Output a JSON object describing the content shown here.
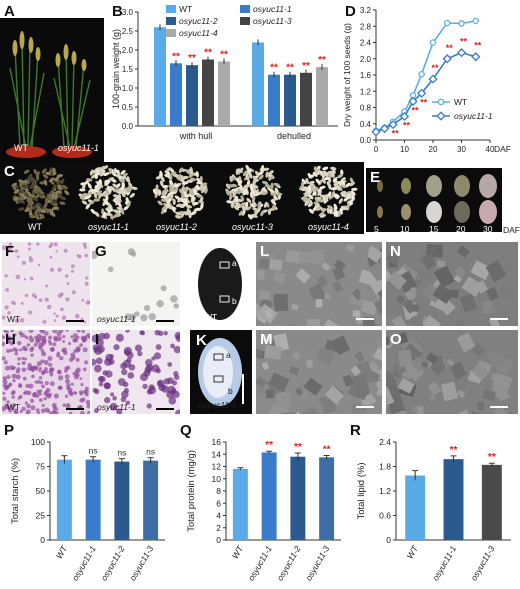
{
  "panel_labels": {
    "A": "A",
    "B": "B",
    "C": "C",
    "D": "D",
    "E": "E",
    "F": "F",
    "G": "G",
    "H": "H",
    "I": "I",
    "J": "J",
    "K": "K",
    "L": "L",
    "M": "M",
    "N": "N",
    "O": "O",
    "P": "P",
    "Q": "Q",
    "R": "R"
  },
  "panelA": {
    "wt": "WT",
    "mut": "osyuc11-1"
  },
  "panelC": {
    "labels": [
      "WT",
      "osyuc11-1",
      "osyuc11-2",
      "osyuc11-3",
      "osyuc11-4"
    ]
  },
  "panelE": {
    "days": [
      "5",
      "10",
      "15",
      "20",
      "30"
    ],
    "unit": "DAF"
  },
  "panelF": {
    "label": "WT"
  },
  "panelG": {
    "label": "osyuc11-1"
  },
  "panelH": {
    "label": "WT"
  },
  "panelI": {
    "label": "osyuc11-1"
  },
  "panelJ": {
    "label": "WT",
    "a": "a",
    "b": "b"
  },
  "panelK": {
    "label": "osyuc11-1",
    "a": "a",
    "b": "b"
  },
  "colors": {
    "c1": "#5aaae8",
    "c2": "#3a7cc8",
    "c3": "#2a5a8e",
    "c4": "#444",
    "c5": "#aaa",
    "sig": "#e02020"
  },
  "chart_data": [
    {
      "type": "bar",
      "panel": "B",
      "ylabel": "100-grain weight (g)",
      "ylim": [
        0,
        3.0
      ],
      "yticks": [
        "0.0",
        "0.5",
        "1.0",
        "1.5",
        "2.0",
        "2.5",
        "3.0"
      ],
      "categories": [
        "with hull",
        "dehulled"
      ],
      "series": [
        {
          "name": "WT",
          "values": [
            2.6,
            2.2
          ],
          "sig": [
            "",
            ""
          ]
        },
        {
          "name": "osyuc11-1",
          "values": [
            1.65,
            1.35
          ],
          "sig": [
            "**",
            "**"
          ]
        },
        {
          "name": "osyuc11-2",
          "values": [
            1.6,
            1.35
          ],
          "sig": [
            "**",
            "**"
          ]
        },
        {
          "name": "osyuc11-3",
          "values": [
            1.75,
            1.4
          ],
          "sig": [
            "**",
            "**"
          ]
        },
        {
          "name": "osyuc11-4",
          "values": [
            1.7,
            1.55
          ],
          "sig": [
            "**",
            "**"
          ]
        }
      ]
    },
    {
      "type": "line",
      "panel": "D",
      "ylabel": "Dry weight of 100 seeds (g)",
      "xlabel": "DAF",
      "xlim": [
        0,
        40
      ],
      "ylim": [
        0,
        3.2
      ],
      "xticks": [
        "0",
        "10",
        "20",
        "30",
        "40"
      ],
      "yticks": [
        "0.0",
        "0.4",
        "0.8",
        "1.2",
        "1.6",
        "2.0",
        "2.4",
        "2.8",
        "3.2"
      ],
      "x": [
        0,
        3,
        6,
        10,
        13,
        16,
        20,
        25,
        30,
        35
      ],
      "series": [
        {
          "name": "WT",
          "values": [
            0.22,
            0.3,
            0.45,
            0.7,
            1.1,
            1.62,
            2.4,
            2.88,
            2.87,
            2.93
          ],
          "err": [
            0.02,
            0.03,
            0.03,
            0.04,
            0.05,
            0.05,
            0.05,
            0.05,
            0.06,
            0.04
          ]
        },
        {
          "name": "osyuc11-1",
          "values": [
            0.2,
            0.28,
            0.38,
            0.58,
            0.95,
            1.15,
            1.5,
            2.0,
            2.15,
            2.05
          ],
          "err": [
            0.02,
            0.03,
            0.03,
            0.04,
            0.05,
            0.06,
            0.08,
            0.06,
            0.06,
            0.04
          ],
          "sig": [
            "",
            "",
            "**",
            "**",
            "**",
            "**",
            "**",
            "**",
            "**",
            "**"
          ]
        }
      ]
    },
    {
      "type": "bar",
      "panel": "P",
      "ylabel": "Total starch (%)",
      "ylim": [
        0,
        100
      ],
      "yticks": [
        "0",
        "25",
        "50",
        "75",
        "100"
      ],
      "categories": [
        "WT",
        "osyuc11-1",
        "osyuc11-2",
        "osyuc11-3"
      ],
      "values": [
        82,
        82,
        80,
        81
      ],
      "err": [
        4,
        3,
        3,
        3
      ],
      "sig": [
        "",
        "ns",
        "ns",
        "ns"
      ]
    },
    {
      "type": "bar",
      "panel": "Q",
      "ylabel": "Total protein (mg/g)",
      "ylim": [
        0,
        16
      ],
      "yticks": [
        "0",
        "2",
        "4",
        "6",
        "8",
        "10",
        "12",
        "14",
        "16"
      ],
      "categories": [
        "WT",
        "osyuc11-1",
        "osyuc11-2",
        "osyuc11-3"
      ],
      "values": [
        11.6,
        14.3,
        13.6,
        13.5
      ],
      "err": [
        0.2,
        0.2,
        0.6,
        0.3
      ],
      "sig": [
        "",
        "**",
        "**",
        "**"
      ]
    },
    {
      "type": "bar",
      "panel": "R",
      "ylabel": "Total lipid (%)",
      "ylim": [
        0,
        2.4
      ],
      "yticks": [
        "0",
        "0.6",
        "1.2",
        "1.8",
        "2.4"
      ],
      "categories": [
        "WT",
        "osyuc11-1",
        "osyuc11-3"
      ],
      "values": [
        1.58,
        1.98,
        1.84
      ],
      "err": [
        0.12,
        0.08,
        0.04
      ],
      "sig": [
        "",
        "**",
        "**"
      ]
    }
  ]
}
